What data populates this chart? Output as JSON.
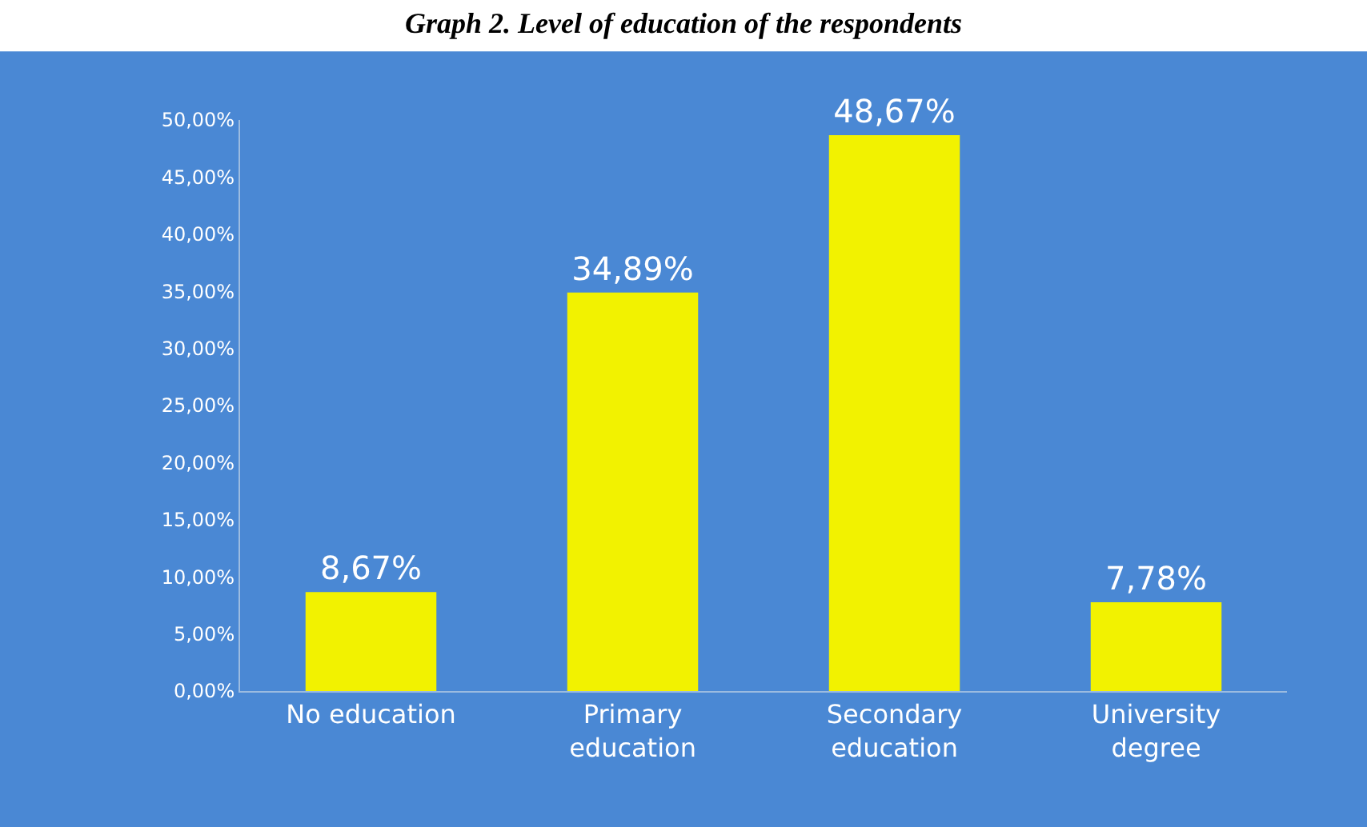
{
  "chart_data": {
    "type": "bar",
    "title": "Graph 2. Level of education of the respondents",
    "categories": [
      "No education",
      "Primary\neducation",
      "Secondary\neducation",
      "University\ndegree"
    ],
    "values": [
      8.67,
      34.89,
      48.67,
      7.78
    ],
    "value_labels": [
      "8,67%",
      "34,89%",
      "48,67%",
      "7,78%"
    ],
    "color": "#f2f200",
    "ylim": [
      0,
      50
    ],
    "yticks": [
      {
        "value": 0,
        "label": "0,00%"
      },
      {
        "value": 5,
        "label": "5,00%"
      },
      {
        "value": 10,
        "label": "10,00%"
      },
      {
        "value": 15,
        "label": "15,00%"
      },
      {
        "value": 20,
        "label": "20,00%"
      },
      {
        "value": 25,
        "label": "25,00%"
      },
      {
        "value": 30,
        "label": "30,00%"
      },
      {
        "value": 35,
        "label": "35,00%"
      },
      {
        "value": 40,
        "label": "40,00%"
      },
      {
        "value": 45,
        "label": "45,00%"
      },
      {
        "value": 50,
        "label": "50,00%"
      }
    ],
    "grid": false,
    "legend": false
  }
}
